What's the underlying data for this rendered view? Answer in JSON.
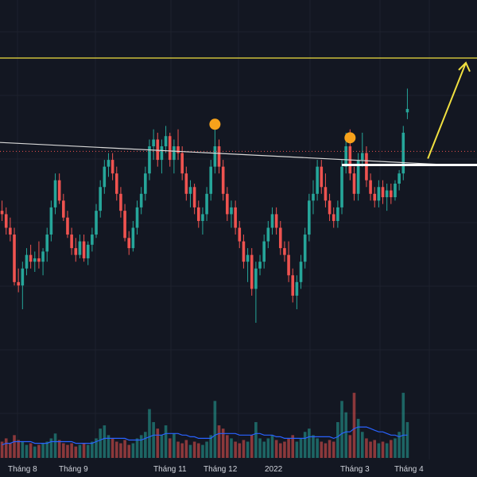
{
  "chart_data": {
    "type": "candlestick",
    "x_ticks": [
      "Tháng 8",
      "Tháng 9",
      "Tháng 11",
      "Tháng 12",
      "2022",
      "Tháng 3",
      "Tháng 4"
    ],
    "y_range": [
      0,
      100
    ],
    "grid": true,
    "colors": {
      "background": "#131722",
      "grid": "#1e222d",
      "up": "#26a69a",
      "down": "#ef5350",
      "volume_ma": "#2962ff",
      "target_line": "#f0e040",
      "trendline": "#d8d8d8",
      "support": "#ffffff",
      "marker": "#f7a21b",
      "price_dotted": "#ef5350"
    },
    "candles": [
      {
        "o": 55,
        "h": 58,
        "l": 52,
        "c": 54
      },
      {
        "o": 54,
        "h": 56,
        "l": 48,
        "c": 50
      },
      {
        "o": 50,
        "h": 53,
        "l": 46,
        "c": 48
      },
      {
        "o": 48,
        "h": 50,
        "l": 33,
        "c": 34
      },
      {
        "o": 34,
        "h": 38,
        "l": 31,
        "c": 33
      },
      {
        "o": 33,
        "h": 40,
        "l": 26,
        "c": 38
      },
      {
        "o": 38,
        "h": 44,
        "l": 36,
        "c": 42
      },
      {
        "o": 42,
        "h": 45,
        "l": 38,
        "c": 40
      },
      {
        "o": 40,
        "h": 43,
        "l": 37,
        "c": 41
      },
      {
        "o": 41,
        "h": 46,
        "l": 38,
        "c": 40
      },
      {
        "o": 40,
        "h": 44,
        "l": 36,
        "c": 43
      },
      {
        "o": 43,
        "h": 50,
        "l": 40,
        "c": 48
      },
      {
        "o": 48,
        "h": 58,
        "l": 46,
        "c": 56
      },
      {
        "o": 56,
        "h": 66,
        "l": 54,
        "c": 64
      },
      {
        "o": 64,
        "h": 66,
        "l": 57,
        "c": 58
      },
      {
        "o": 58,
        "h": 60,
        "l": 52,
        "c": 53
      },
      {
        "o": 53,
        "h": 55,
        "l": 47,
        "c": 48
      },
      {
        "o": 48,
        "h": 50,
        "l": 42,
        "c": 44
      },
      {
        "o": 44,
        "h": 47,
        "l": 40,
        "c": 42
      },
      {
        "o": 42,
        "h": 48,
        "l": 41,
        "c": 46
      },
      {
        "o": 46,
        "h": 48,
        "l": 40,
        "c": 41
      },
      {
        "o": 41,
        "h": 46,
        "l": 39,
        "c": 45
      },
      {
        "o": 45,
        "h": 50,
        "l": 43,
        "c": 48
      },
      {
        "o": 48,
        "h": 57,
        "l": 47,
        "c": 55
      },
      {
        "o": 55,
        "h": 64,
        "l": 53,
        "c": 62
      },
      {
        "o": 62,
        "h": 70,
        "l": 60,
        "c": 68
      },
      {
        "o": 68,
        "h": 72,
        "l": 65,
        "c": 70
      },
      {
        "o": 70,
        "h": 72,
        "l": 64,
        "c": 66
      },
      {
        "o": 66,
        "h": 68,
        "l": 58,
        "c": 60
      },
      {
        "o": 60,
        "h": 62,
        "l": 53,
        "c": 55
      },
      {
        "o": 55,
        "h": 57,
        "l": 46,
        "c": 47
      },
      {
        "o": 47,
        "h": 49,
        "l": 42,
        "c": 44
      },
      {
        "o": 44,
        "h": 52,
        "l": 43,
        "c": 50
      },
      {
        "o": 50,
        "h": 58,
        "l": 48,
        "c": 56
      },
      {
        "o": 56,
        "h": 62,
        "l": 54,
        "c": 60
      },
      {
        "o": 60,
        "h": 68,
        "l": 58,
        "c": 66
      },
      {
        "o": 66,
        "h": 76,
        "l": 64,
        "c": 74
      },
      {
        "o": 74,
        "h": 79,
        "l": 70,
        "c": 76
      },
      {
        "o": 76,
        "h": 78,
        "l": 68,
        "c": 70
      },
      {
        "o": 70,
        "h": 76,
        "l": 66,
        "c": 74
      },
      {
        "o": 74,
        "h": 80,
        "l": 72,
        "c": 77
      },
      {
        "o": 77,
        "h": 78,
        "l": 68,
        "c": 70
      },
      {
        "o": 70,
        "h": 76,
        "l": 66,
        "c": 74
      },
      {
        "o": 74,
        "h": 79,
        "l": 70,
        "c": 72
      },
      {
        "o": 72,
        "h": 74,
        "l": 64,
        "c": 66
      },
      {
        "o": 66,
        "h": 68,
        "l": 58,
        "c": 60
      },
      {
        "o": 60,
        "h": 64,
        "l": 56,
        "c": 62
      },
      {
        "o": 62,
        "h": 63,
        "l": 54,
        "c": 56
      },
      {
        "o": 56,
        "h": 58,
        "l": 50,
        "c": 52
      },
      {
        "o": 52,
        "h": 56,
        "l": 48,
        "c": 54
      },
      {
        "o": 54,
        "h": 62,
        "l": 52,
        "c": 60
      },
      {
        "o": 60,
        "h": 70,
        "l": 58,
        "c": 68
      },
      {
        "o": 68,
        "h": 80,
        "l": 66,
        "c": 74
      },
      {
        "o": 74,
        "h": 76,
        "l": 66,
        "c": 68
      },
      {
        "o": 68,
        "h": 70,
        "l": 58,
        "c": 60
      },
      {
        "o": 60,
        "h": 62,
        "l": 52,
        "c": 54
      },
      {
        "o": 54,
        "h": 58,
        "l": 50,
        "c": 56
      },
      {
        "o": 56,
        "h": 58,
        "l": 48,
        "c": 50
      },
      {
        "o": 50,
        "h": 52,
        "l": 44,
        "c": 46
      },
      {
        "o": 46,
        "h": 48,
        "l": 38,
        "c": 40
      },
      {
        "o": 40,
        "h": 44,
        "l": 34,
        "c": 42
      },
      {
        "o": 42,
        "h": 44,
        "l": 30,
        "c": 32
      },
      {
        "o": 32,
        "h": 40,
        "l": 22,
        "c": 38
      },
      {
        "o": 38,
        "h": 42,
        "l": 36,
        "c": 40
      },
      {
        "o": 40,
        "h": 48,
        "l": 38,
        "c": 46
      },
      {
        "o": 46,
        "h": 52,
        "l": 44,
        "c": 50
      },
      {
        "o": 50,
        "h": 56,
        "l": 48,
        "c": 54
      },
      {
        "o": 54,
        "h": 56,
        "l": 48,
        "c": 50
      },
      {
        "o": 50,
        "h": 52,
        "l": 42,
        "c": 44
      },
      {
        "o": 44,
        "h": 46,
        "l": 40,
        "c": 42
      },
      {
        "o": 42,
        "h": 46,
        "l": 34,
        "c": 36
      },
      {
        "o": 36,
        "h": 38,
        "l": 28,
        "c": 30
      },
      {
        "o": 30,
        "h": 36,
        "l": 26,
        "c": 34
      },
      {
        "o": 34,
        "h": 42,
        "l": 32,
        "c": 40
      },
      {
        "o": 40,
        "h": 50,
        "l": 38,
        "c": 48
      },
      {
        "o": 48,
        "h": 60,
        "l": 46,
        "c": 58
      },
      {
        "o": 58,
        "h": 64,
        "l": 54,
        "c": 60
      },
      {
        "o": 60,
        "h": 70,
        "l": 58,
        "c": 68
      },
      {
        "o": 68,
        "h": 70,
        "l": 60,
        "c": 62
      },
      {
        "o": 62,
        "h": 66,
        "l": 56,
        "c": 58
      },
      {
        "o": 58,
        "h": 60,
        "l": 52,
        "c": 54
      },
      {
        "o": 54,
        "h": 56,
        "l": 50,
        "c": 52
      },
      {
        "o": 52,
        "h": 58,
        "l": 50,
        "c": 56
      },
      {
        "o": 56,
        "h": 70,
        "l": 54,
        "c": 68
      },
      {
        "o": 68,
        "h": 78,
        "l": 66,
        "c": 74
      },
      {
        "o": 74,
        "h": 79,
        "l": 64,
        "c": 66
      },
      {
        "o": 66,
        "h": 68,
        "l": 58,
        "c": 60
      },
      {
        "o": 60,
        "h": 72,
        "l": 58,
        "c": 70
      },
      {
        "o": 70,
        "h": 78,
        "l": 68,
        "c": 72
      },
      {
        "o": 72,
        "h": 74,
        "l": 62,
        "c": 64
      },
      {
        "o": 64,
        "h": 66,
        "l": 58,
        "c": 60
      },
      {
        "o": 60,
        "h": 62,
        "l": 56,
        "c": 58
      },
      {
        "o": 58,
        "h": 64,
        "l": 56,
        "c": 62
      },
      {
        "o": 62,
        "h": 64,
        "l": 57,
        "c": 59
      },
      {
        "o": 59,
        "h": 63,
        "l": 55,
        "c": 61
      },
      {
        "o": 61,
        "h": 63,
        "l": 57,
        "c": 59
      },
      {
        "o": 59,
        "h": 64,
        "l": 58,
        "c": 63
      },
      {
        "o": 63,
        "h": 67,
        "l": 61,
        "c": 66
      },
      {
        "o": 66,
        "h": 80,
        "l": 64,
        "c": 78
      },
      {
        "o": 84,
        "h": 91,
        "l": 82,
        "c": 85
      }
    ],
    "volumes": [
      10,
      12,
      9,
      14,
      11,
      10,
      8,
      9,
      7,
      8,
      9,
      10,
      12,
      15,
      11,
      9,
      8,
      9,
      7,
      8,
      9,
      8,
      10,
      12,
      18,
      20,
      14,
      12,
      10,
      9,
      11,
      8,
      9,
      12,
      14,
      16,
      30,
      22,
      18,
      14,
      20,
      12,
      15,
      10,
      9,
      11,
      8,
      10,
      9,
      8,
      10,
      14,
      35,
      20,
      18,
      14,
      12,
      10,
      9,
      11,
      10,
      14,
      22,
      12,
      10,
      12,
      14,
      11,
      9,
      10,
      12,
      14,
      10,
      12,
      16,
      18,
      14,
      12,
      10,
      9,
      11,
      10,
      22,
      35,
      28,
      14,
      40,
      24,
      16,
      12,
      10,
      11,
      9,
      10,
      9,
      11,
      12,
      16,
      40,
      22
    ],
    "volume_ma": [
      8,
      9,
      9,
      10,
      10,
      10,
      10,
      10,
      9,
      9,
      9,
      9,
      10,
      10,
      10,
      10,
      10,
      10,
      9,
      9,
      9,
      9,
      9,
      10,
      11,
      12,
      12,
      12,
      12,
      12,
      12,
      11,
      11,
      11,
      11,
      12,
      13,
      14,
      14,
      14,
      15,
      15,
      15,
      15,
      14,
      14,
      13,
      13,
      12,
      12,
      12,
      12,
      14,
      15,
      15,
      15,
      15,
      15,
      14,
      14,
      14,
      14,
      15,
      15,
      14,
      14,
      14,
      13,
      13,
      12,
      12,
      12,
      12,
      12,
      12,
      13,
      13,
      13,
      13,
      13,
      13,
      12,
      13,
      15,
      16,
      16,
      18,
      19,
      19,
      19,
      18,
      17,
      16,
      16,
      15,
      14,
      14,
      13,
      14,
      14
    ],
    "volume_range": [
      0,
      42
    ],
    "trendline": {
      "start": [
        -5,
        75.4
      ],
      "end": [
        108,
        68.6
      ]
    },
    "support_level": 68.5,
    "resistance_target": 100,
    "dotted_price": 72.5,
    "highlighted_peaks": [
      {
        "index": 52,
        "value": 80.5
      },
      {
        "index": 85,
        "value": 76.5
      }
    ]
  }
}
